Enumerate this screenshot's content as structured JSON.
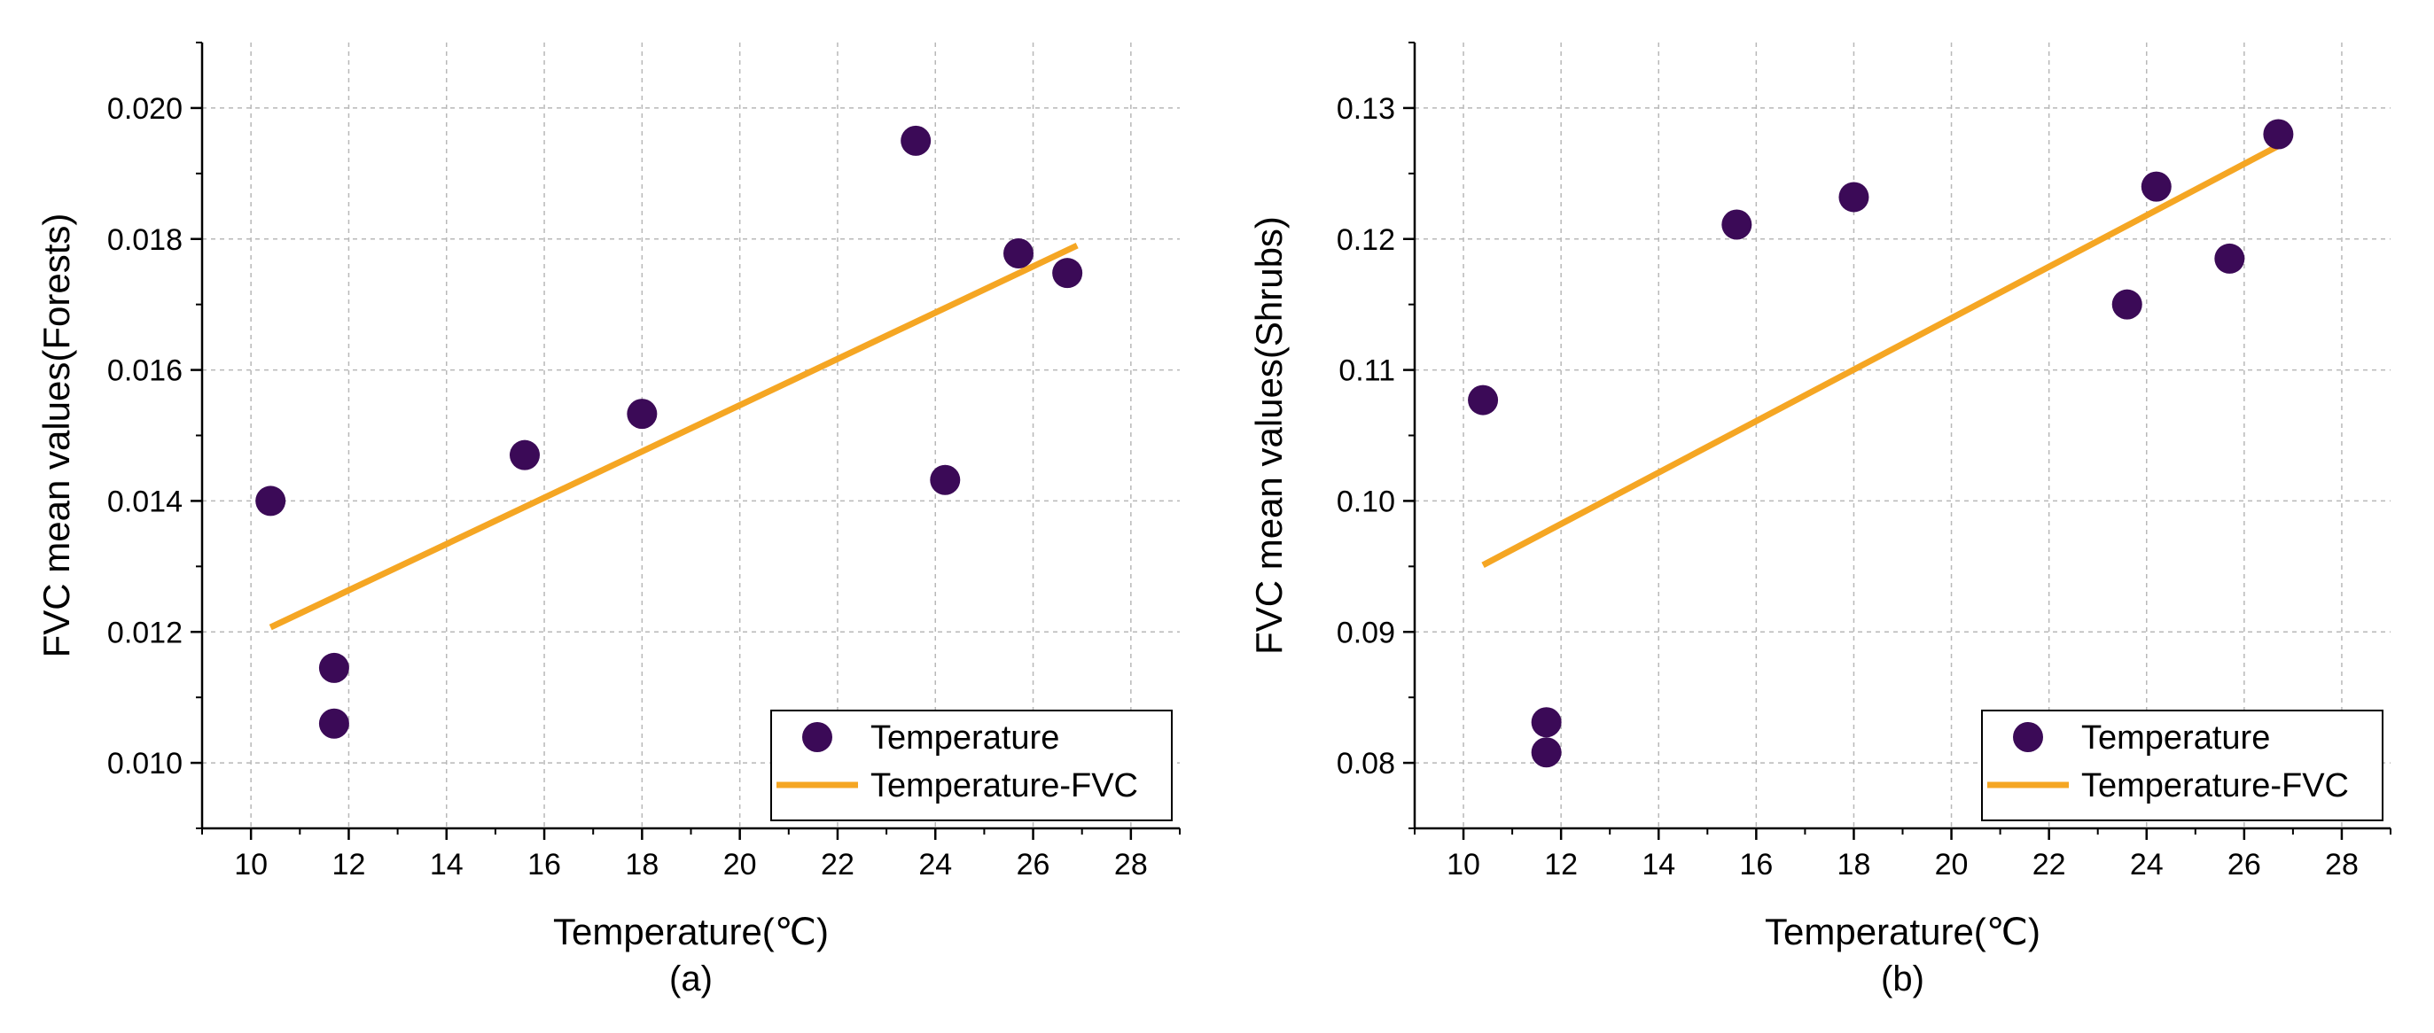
{
  "chart_data": [
    {
      "type": "scatter",
      "panel_label": "(a)",
      "xlabel": "Temperature(℃)",
      "ylabel": "FVC mean values(Forests)",
      "xlim": [
        9,
        29
      ],
      "ylim": [
        0.009,
        0.021
      ],
      "xticks": [
        10,
        12,
        14,
        16,
        18,
        20,
        22,
        24,
        26,
        28
      ],
      "xtick_labels": [
        "10",
        "12",
        "14",
        "16",
        "18",
        "20",
        "22",
        "24",
        "26",
        "28"
      ],
      "yticks": [
        0.01,
        0.012,
        0.014,
        0.016,
        0.018,
        0.02
      ],
      "ytick_labels": [
        "0.010",
        "0.012",
        "0.014",
        "0.016",
        "0.018",
        "0.020"
      ],
      "grid": true,
      "legend_position": "bottom-right",
      "series": [
        {
          "name": "Temperature",
          "kind": "scatter",
          "color": "#3b0a57",
          "x": [
            10.4,
            11.7,
            11.7,
            15.6,
            18.0,
            23.6,
            24.2,
            25.7,
            26.7
          ],
          "y": [
            0.014,
            0.01145,
            0.0106,
            0.0147,
            0.01533,
            0.0195,
            0.01432,
            0.01778,
            0.01748
          ]
        },
        {
          "name": "Temperature-FVC",
          "kind": "line",
          "color": "#f5a623",
          "x": [
            10.4,
            26.9
          ],
          "y": [
            0.01207,
            0.0179
          ]
        }
      ]
    },
    {
      "type": "scatter",
      "panel_label": "(b)",
      "xlabel": "Temperature(℃)",
      "ylabel": "FVC mean values(Shrubs)",
      "xlim": [
        9,
        29
      ],
      "ylim": [
        0.075,
        0.135
      ],
      "xticks": [
        10,
        12,
        14,
        16,
        18,
        20,
        22,
        24,
        26,
        28
      ],
      "xtick_labels": [
        "10",
        "12",
        "14",
        "16",
        "18",
        "20",
        "22",
        "24",
        "26",
        "28"
      ],
      "yticks": [
        0.08,
        0.09,
        0.1,
        0.11,
        0.12,
        0.13
      ],
      "ytick_labels": [
        "0.08",
        "0.09",
        "0.10",
        "0.11",
        "0.12",
        "0.13"
      ],
      "grid": true,
      "legend_position": "bottom-right",
      "series": [
        {
          "name": "Temperature",
          "kind": "scatter",
          "color": "#3b0a57",
          "x": [
            10.4,
            11.7,
            11.7,
            15.6,
            18.0,
            23.6,
            24.2,
            25.7,
            26.7
          ],
          "y": [
            0.1077,
            0.0831,
            0.0808,
            0.1211,
            0.1232,
            0.115,
            0.124,
            0.1185,
            0.128
          ]
        },
        {
          "name": "Temperature-FVC",
          "kind": "line",
          "color": "#f5a623",
          "x": [
            10.4,
            26.9
          ],
          "y": [
            0.0951,
            0.1275
          ]
        }
      ]
    }
  ]
}
